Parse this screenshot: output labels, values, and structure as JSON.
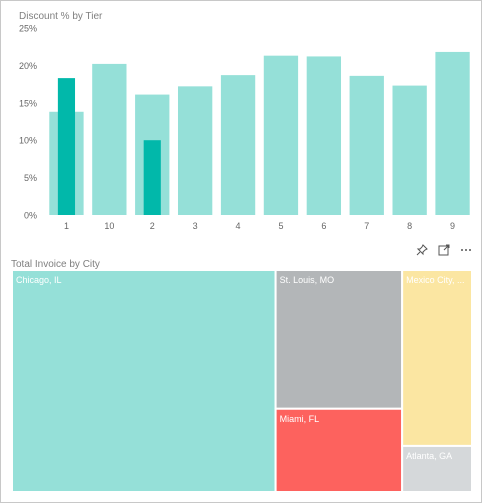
{
  "colors": {
    "bar_light": "#95E0D8",
    "bar_highlight": "#01B8AA",
    "axis_text": "#666666",
    "grid": "#e6e6e6",
    "chicago": "#95E0D8",
    "st_louis": "#B3B6B8",
    "miami": "#FD625E",
    "mexico_city": "#FBE6A2",
    "atlanta": "#D5D8DA"
  },
  "toolbar": {
    "icons": [
      "pin-icon",
      "focus-mode-icon",
      "more-options-icon"
    ]
  },
  "chart_data": [
    {
      "type": "bar",
      "title": "Discount % by Tier",
      "categories": [
        "1",
        "10",
        "2",
        "3",
        "4",
        "5",
        "6",
        "7",
        "8",
        "9"
      ],
      "series": [
        {
          "values": [
            13.8,
            20.2,
            16.1,
            17.2,
            18.7,
            21.3,
            21.2,
            18.6,
            17.3,
            21.8
          ]
        },
        {
          "values": [
            18.3,
            null,
            10.0,
            null,
            null,
            null,
            null,
            null,
            null,
            null
          ]
        }
      ],
      "yticks": [
        "0%",
        "5%",
        "10%",
        "15%",
        "20%",
        "25%"
      ],
      "ylim": [
        0,
        25
      ],
      "grid": false
    },
    {
      "type": "treemap",
      "title": "Total Invoice by City",
      "items": [
        {
          "label": "Chicago, IL",
          "value": 100,
          "color": "#95E0D8"
        },
        {
          "label": "St. Louis, MO",
          "value": 30,
          "color": "#B3B6B8"
        },
        {
          "label": "Miami, FL",
          "value": 18,
          "color": "#FD625E"
        },
        {
          "label": "Mexico City, ...",
          "value": 21,
          "color": "#FBE6A2"
        },
        {
          "label": "Atlanta, GA",
          "value": 5.5,
          "color": "#D5D8DA"
        }
      ]
    }
  ]
}
